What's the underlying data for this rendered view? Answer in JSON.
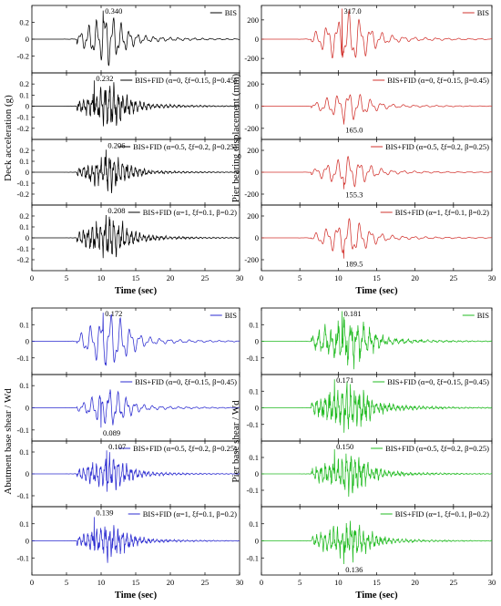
{
  "chart_data": [
    {
      "type": "line",
      "ylabel": "Deck acceleration (g)",
      "xlabel": "Time (sec)",
      "xlim": [
        0,
        30
      ],
      "xticks": [
        0,
        5,
        10,
        15,
        20,
        25,
        30
      ],
      "color": "#000000",
      "grid": false,
      "legend_position": "top-right",
      "panels": [
        {
          "legend": "BIS",
          "ylim": [
            -0.4,
            0.4
          ],
          "yticks": [
            -0.2,
            0.0,
            0.2
          ],
          "peak": {
            "t": 10.3,
            "value": 0.34
          },
          "annotation": "0.340",
          "signal": {
            "center": 10.3,
            "width": 3.2,
            "freq": 0.85,
            "noise": 0.02
          }
        },
        {
          "legend": "BIS+FID (α=0, ξf=0.15, β=0.45)",
          "ylim": [
            -0.3,
            0.3
          ],
          "yticks": [
            -0.2,
            -0.1,
            0.0,
            0.1,
            0.2
          ],
          "peak": {
            "t": 9.0,
            "value": 0.232
          },
          "annotation": "0.232",
          "signal": {
            "center": 10.5,
            "width": 3.5,
            "freq": 1.6,
            "noise": 0.25
          }
        },
        {
          "legend": "BIS+FID (α=0.5, ξf=0.2, β=0.25)",
          "ylim": [
            -0.3,
            0.3
          ],
          "yticks": [
            -0.2,
            -0.1,
            0.0,
            0.1,
            0.2
          ],
          "peak": {
            "t": 10.7,
            "value": 0.206
          },
          "annotation": "0.206",
          "signal": {
            "center": 10.5,
            "width": 3.5,
            "freq": 1.6,
            "noise": 0.25
          }
        },
        {
          "legend": "BIS+FID (α=1, ξf=0.1, β=0.2)",
          "ylim": [
            -0.3,
            0.3
          ],
          "yticks": [
            -0.2,
            -0.1,
            0.0,
            0.1,
            0.2
          ],
          "peak": {
            "t": 10.7,
            "value": 0.208
          },
          "annotation": "0.208",
          "signal": {
            "center": 10.5,
            "width": 3.5,
            "freq": 1.6,
            "noise": 0.25
          }
        }
      ]
    },
    {
      "type": "line",
      "ylabel": "Pier bearing displacement (mm)",
      "xlabel": "Time (sec)",
      "xlim": [
        0,
        30
      ],
      "xticks": [
        0,
        5,
        10,
        15,
        20,
        25,
        30
      ],
      "color": "#d2332e",
      "grid": false,
      "legend_position": "top-right",
      "panels": [
        {
          "legend": "BIS",
          "ylim": [
            -350,
            350
          ],
          "yticks": [
            -200,
            0,
            200
          ],
          "peak": {
            "t": 10.5,
            "value": 317.0
          },
          "annotation": "317.0",
          "signal": {
            "center": 10.7,
            "width": 3.6,
            "freq": 0.7,
            "noise": 0.0
          }
        },
        {
          "legend": "BIS+FID (α=0, ξf=0.15, β=0.45)",
          "ylim": [
            -300,
            300
          ],
          "yticks": [
            -200,
            0,
            200
          ],
          "peak": {
            "t": 10.7,
            "value": -165.0
          },
          "annotation": "165.0",
          "signal": {
            "center": 10.7,
            "width": 3.4,
            "freq": 0.7,
            "noise": 0.0
          }
        },
        {
          "legend": "BIS+FID (α=0.5, ξf=0.2, β=0.25)",
          "ylim": [
            -300,
            300
          ],
          "yticks": [
            -200,
            0,
            200
          ],
          "peak": {
            "t": 10.7,
            "value": -155.3
          },
          "annotation": "155.3",
          "signal": {
            "center": 10.7,
            "width": 3.4,
            "freq": 0.7,
            "noise": 0.0
          }
        },
        {
          "legend": "BIS+FID (α=1, ξf=0.1, β=0.2)",
          "ylim": [
            -300,
            300
          ],
          "yticks": [
            -200,
            0,
            200
          ],
          "peak": {
            "t": 10.7,
            "value": -189.5
          },
          "annotation": "189.5",
          "signal": {
            "center": 10.7,
            "width": 3.4,
            "freq": 0.7,
            "noise": 0.0
          }
        }
      ]
    },
    {
      "type": "line",
      "ylabel": "Abutment base shear / Wd",
      "xlabel": "Time (sec)",
      "xlim": [
        0,
        30
      ],
      "xticks": [
        0,
        5,
        10,
        15,
        20,
        25,
        30
      ],
      "color": "#2b2bd0",
      "grid": false,
      "legend_position": "top-right",
      "panels": [
        {
          "legend": "BIS",
          "ylim": [
            -0.2,
            0.2
          ],
          "yticks": [
            -0.1,
            0.0,
            0.1
          ],
          "peak": {
            "t": 10.3,
            "value": 0.172
          },
          "annotation": "0.172",
          "signal": {
            "center": 10.7,
            "width": 3.6,
            "freq": 0.7,
            "noise": 0.0
          }
        },
        {
          "legend": "BIS+FID (α=0, ξf=0.15, β=0.45)",
          "ylim": [
            -0.15,
            0.15
          ],
          "yticks": [
            -0.1,
            0.0,
            0.1
          ],
          "peak": {
            "t": 10.0,
            "value": -0.089
          },
          "annotation": "0.089",
          "signal": {
            "center": 10.7,
            "width": 3.2,
            "freq": 0.8,
            "noise": 0.05
          }
        },
        {
          "legend": "BIS+FID (α=0.5, ξf=0.2, β=0.25)",
          "ylim": [
            -0.15,
            0.15
          ],
          "yticks": [
            -0.1,
            0.0,
            0.1
          ],
          "peak": {
            "t": 10.8,
            "value": 0.107
          },
          "annotation": "0.107",
          "signal": {
            "center": 10.5,
            "width": 3.6,
            "freq": 1.6,
            "noise": 0.2
          }
        },
        {
          "legend": "BIS+FID (α=1, ξf=0.1, β=0.2)",
          "ylim": [
            -0.2,
            0.2
          ],
          "yticks": [
            -0.1,
            0.0,
            0.1
          ],
          "peak": {
            "t": 9.0,
            "value": 0.139
          },
          "annotation": "0.139",
          "signal": {
            "center": 10.5,
            "width": 3.6,
            "freq": 1.6,
            "noise": 0.25
          }
        }
      ]
    },
    {
      "type": "line",
      "ylabel": "Pier base shear / Wd",
      "xlabel": "Time (sec)",
      "xlim": [
        0,
        30
      ],
      "xticks": [
        0,
        5,
        10,
        15,
        20,
        25,
        30
      ],
      "color": "#22bb22",
      "grid": false,
      "legend_position": "top-right",
      "panels": [
        {
          "legend": "BIS",
          "ylim": [
            -0.2,
            0.2
          ],
          "yticks": [
            -0.1,
            0.0,
            0.1
          ],
          "peak": {
            "t": 10.5,
            "value": 0.181
          },
          "annotation": "0.181",
          "signal": {
            "center": 10.5,
            "width": 3.8,
            "freq": 1.2,
            "noise": 0.3
          }
        },
        {
          "legend": "BIS+FID (α=0, ξf=0.15, β=0.45)",
          "ylim": [
            -0.2,
            0.2
          ],
          "yticks": [
            -0.1,
            0.0,
            0.1
          ],
          "peak": {
            "t": 9.5,
            "value": 0.171
          },
          "annotation": "0.171",
          "signal": {
            "center": 10.5,
            "width": 3.8,
            "freq": 1.8,
            "noise": 0.35
          }
        },
        {
          "legend": "BIS+FID (α=0.5, ξf=0.2, β=0.25)",
          "ylim": [
            -0.2,
            0.2
          ],
          "yticks": [
            -0.1,
            0.0,
            0.1
          ],
          "peak": {
            "t": 9.5,
            "value": 0.15
          },
          "annotation": "0.150",
          "signal": {
            "center": 10.5,
            "width": 3.8,
            "freq": 1.8,
            "noise": 0.35
          }
        },
        {
          "legend": "BIS+FID (α=1, ξf=0.1, β=0.2)",
          "ylim": [
            -0.2,
            0.2
          ],
          "yticks": [
            -0.1,
            0.0,
            0.1
          ],
          "peak": {
            "t": 10.7,
            "value": -0.136
          },
          "annotation": "0.136",
          "signal": {
            "center": 10.5,
            "width": 3.8,
            "freq": 1.8,
            "noise": 0.35
          }
        }
      ]
    }
  ]
}
